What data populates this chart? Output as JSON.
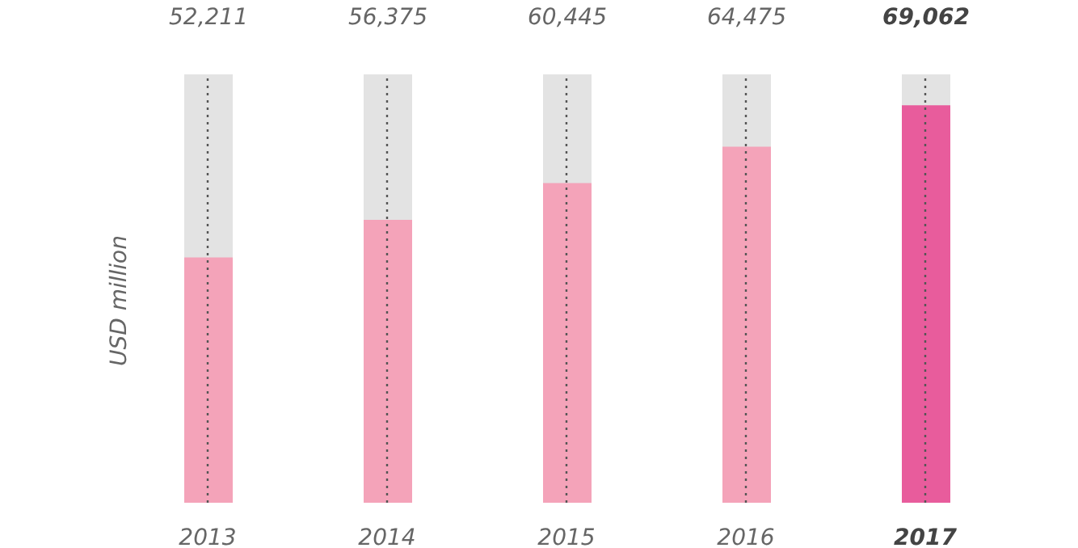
{
  "chart_data": {
    "type": "bar",
    "ylabel": "USD million",
    "categories": [
      "2013",
      "2014",
      "2015",
      "2016",
      "2017"
    ],
    "values": [
      52211,
      56375,
      60445,
      64475,
      69062
    ],
    "colors": [
      "#f4a3b9",
      "#f4a3b9",
      "#f4a3b9",
      "#f4a3b9",
      "#e85c9c"
    ],
    "value_labels": [
      "52,211",
      "56,375",
      "60,445",
      "64,475",
      "69,062"
    ],
    "ylim": [
      25000,
      72500
    ],
    "tick_labels": "x",
    "grid": false,
    "legend": false,
    "ref_lines": [
      {
        "axis": "x",
        "value": "2013",
        "line_style": "dotted",
        "color": "#555555"
      },
      {
        "axis": "x",
        "value": "2014",
        "line_style": "dotted",
        "color": "#555555"
      },
      {
        "axis": "x",
        "value": "2015",
        "line_style": "dotted",
        "color": "#555555"
      },
      {
        "axis": "x",
        "value": "2016",
        "line_style": "dotted",
        "color": "#555555"
      },
      {
        "axis": "x",
        "value": "2017",
        "line_style": "dotted",
        "color": "#555555"
      }
    ]
  }
}
